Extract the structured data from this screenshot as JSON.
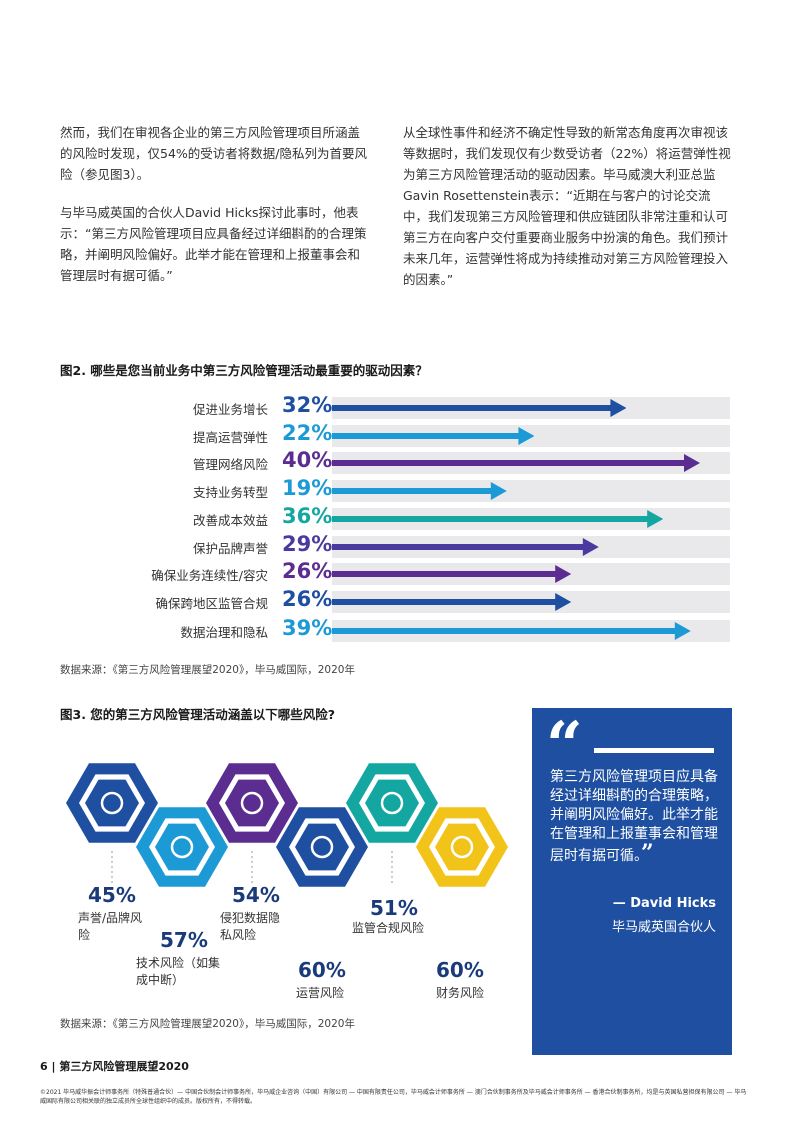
{
  "left_column": {
    "p1": "然而，我们在审视各企业的第三方风险管理项目所涵盖的风险时发现，仅54%的受访者将数据/隐私列为首要风险（参见图3）。",
    "p2": "与毕马威英国的合伙人David Hicks探讨此事时，他表示：“第三方风险管理项目应具备经过详细斟酌的合理策略，并阐明风险偏好。此举才能在管理和上报董事会和管理层时有据可循。”"
  },
  "right_column": {
    "p1": "从全球性事件和经济不确定性导致的新常态角度再次审视该等数据时，我们发现仅有少数受访者（22%）将运营弹性视为第三方风险管理活动的驱动因素。毕马威澳大利亚总监Gavin Rosettenstein表示：“近期在与客户的讨论交流中，我们发现第三方风险管理和供应链团队非常注重和认可第三方在向客户交付重要商业服务中扮演的角色。我们预计未来几年，运营弹性将成为持续推动对第三方风险管理投入的因素。”"
  },
  "figure2": {
    "title": "图2. 哪些是您当前业务中第三方风险管理活动最重要的驱动因素？",
    "source": "数据来源：《第三方风险管理展望2020》，毕马威国际，2020年"
  },
  "chart_data": {
    "type": "bar",
    "orientation": "horizontal",
    "categories": [
      "促进业务增长",
      "提高运营弹性",
      "管理网络风险",
      "支持业务转型",
      "改善成本效益",
      "保护品牌声誉",
      "确保业务连续性/容灾",
      "确保跨地区监管合规",
      "数据治理和隐私"
    ],
    "values": [
      32,
      22,
      40,
      19,
      36,
      29,
      26,
      26,
      39
    ],
    "value_labels": [
      "32%",
      "22%",
      "40%",
      "19%",
      "36%",
      "29%",
      "26%",
      "26%",
      "39%"
    ],
    "colors": [
      "#1e4fa1",
      "#1c9ad6",
      "#5c2d91",
      "#1c9ad6",
      "#14a6a0",
      "#4a3aa0",
      "#5c2d91",
      "#1e4fa1",
      "#1c9ad6"
    ],
    "title": "",
    "xlabel": "",
    "ylabel": "",
    "xlim": [
      0,
      45
    ],
    "grid": false
  },
  "figure3": {
    "title": "图3. 您的第三方风险管理活动涵盖以下哪些风险?",
    "source": "数据来源：《第三方风险管理展望2020》，毕马威国际，2020年",
    "risks": [
      {
        "pct": "45%",
        "label_lines": [
          "声誉/品牌风",
          "险"
        ],
        "color": "#1e4fa1",
        "icon": "people-star-icon"
      },
      {
        "pct": "57%",
        "label_lines": [
          "技术风险（如集",
          "成中断）"
        ],
        "color": "#1c9ad6",
        "icon": "globe-network-icon"
      },
      {
        "pct": "54%",
        "label_lines": [
          "侵犯数据隐",
          "私风险"
        ],
        "color": "#5c2d91",
        "icon": "lock-icon"
      },
      {
        "pct": "60%",
        "label_lines": [
          "运营风险"
        ],
        "color": "#1e4fa1",
        "icon": "gears-icon"
      },
      {
        "pct": "51%",
        "label_lines": [
          "监管合规风险"
        ],
        "color": "#14a6a0",
        "icon": "clipboard-icon"
      },
      {
        "pct": "60%",
        "label_lines": [
          "财务风险"
        ],
        "color": "#f2c41a",
        "icon": "coins-icon"
      }
    ]
  },
  "quote": {
    "mark": "“",
    "text": "第三方风险管理项目应具备经过详细斟酌的合理策略，并阐明风险偏好。此举才能在管理和上报董事会和管理层时有据可循。",
    "close": "”",
    "name": "— David Hicks",
    "role": "毕马威英国合伙人"
  },
  "footer": {
    "page": "6 | 第三方风险管理展望2020",
    "copyright": "©2021 毕马威华振会计师事务所（特殊普通合伙）— 中国合伙制会计师事务所，毕马威企业咨询（中国）有限公司 — 中国有限责任公司，毕马威会计师事务所 — 澳门合伙制事务所及毕马威会计师事务所 — 香港合伙制事务所，均是与英国私营担保有限公司 — 毕马威国际有限公司相关联的独立成员所全球性组织中的成员。版权所有，不得转载。"
  }
}
